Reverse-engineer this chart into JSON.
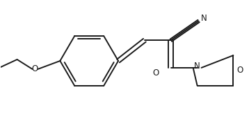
{
  "bg_color": "#ffffff",
  "line_color": "#1a1a1a",
  "text_color": "#1a1a1a",
  "line_width": 1.4,
  "figsize": [
    3.58,
    1.72
  ],
  "dpi": 100,
  "xlim": [
    0,
    358
  ],
  "ylim": [
    0,
    172
  ]
}
